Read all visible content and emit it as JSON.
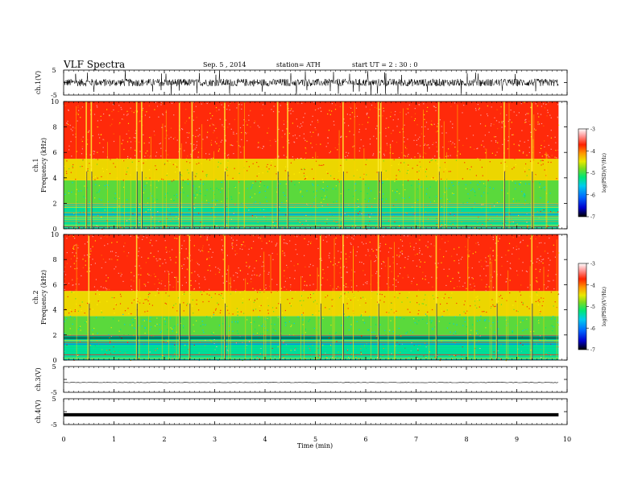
{
  "header": {
    "title": "VLF  Spectra",
    "date": "Sep. 5  , 2014",
    "station": "station= ATH",
    "start": "start  UT  =   2  : 30 : 0"
  },
  "colors": {
    "scale": [
      "#000000",
      "#0000cc",
      "#0066ff",
      "#00ccee",
      "#00e676",
      "#7ddc1f",
      "#e8e800",
      "#ff9900",
      "#ff2200",
      "#ff9999",
      "#ffffff"
    ]
  },
  "chart_data": [
    {
      "type": "line",
      "panel": "ch1-waveform",
      "ylabel": "ch.1(V)",
      "ylim": [
        -5,
        5
      ],
      "yticks": [
        "5",
        "-5"
      ],
      "description_values": {
        "mean": 0,
        "amplitude_approx": 1.5
      }
    },
    {
      "type": "heatmap",
      "panel": "ch1-spectrogram",
      "ylabel": "ch.1\nFrequency (kHz)",
      "ylabel_top": "ch.1",
      "ylabel_main": "Frequency  (kHz)",
      "ylim": [
        0,
        10
      ],
      "yticks": [
        "10",
        "8",
        "6",
        "4",
        "2",
        "0"
      ],
      "xlim": [
        0,
        9.83
      ],
      "zlabel": "log(PSD)(V²/Hz)",
      "zlim": [
        -7,
        -3
      ],
      "zticks": [
        "-3",
        "-4",
        "-5",
        "-6",
        "-7"
      ],
      "bands_kHz": [
        {
          "from": 0,
          "to": 2,
          "log_psd": -5.5
        },
        {
          "from": 2,
          "to": 3.8,
          "log_psd": -5.0
        },
        {
          "from": 3.8,
          "to": 5.5,
          "log_psd": -4.3
        },
        {
          "from": 5.5,
          "to": 10,
          "log_psd": -3.8
        }
      ],
      "sferic_times_min": [
        0.45,
        0.55,
        1.45,
        1.55,
        2.3,
        2.55,
        3.2,
        4.25,
        4.45,
        5.55,
        6.25,
        6.3,
        7.45,
        8.75,
        9.3
      ]
    },
    {
      "type": "heatmap",
      "panel": "ch2-spectrogram",
      "ylabel_top": "ch.2",
      "ylabel_main": "Frequency  (kHz)",
      "ylim": [
        0,
        10
      ],
      "yticks": [
        "10",
        "8",
        "6",
        "4",
        "2",
        "0"
      ],
      "xlim": [
        0,
        9.83
      ],
      "zlabel": "log(PSD)(V²/Hz)",
      "zlim": [
        -7,
        -3
      ],
      "zticks": [
        "-3",
        "-4",
        "-5",
        "-6",
        "-7"
      ],
      "bands_kHz": [
        {
          "from": 0,
          "to": 2,
          "log_psd": -5.5
        },
        {
          "from": 2,
          "to": 3.5,
          "log_psd": -5.0
        },
        {
          "from": 3.5,
          "to": 5.5,
          "log_psd": -4.3
        },
        {
          "from": 5.5,
          "to": 10,
          "log_psd": -3.8
        }
      ],
      "sferic_times_min": [
        0.5,
        1.45,
        2.3,
        2.5,
        3.2,
        4.3,
        5.1,
        5.55,
        6.25,
        7.4,
        8.6,
        9.3
      ]
    },
    {
      "type": "line",
      "panel": "ch3-waveform",
      "ylabel": "ch.3(V)",
      "ylim": [
        -5,
        5
      ],
      "yticks": [
        "5",
        "-5"
      ],
      "description_values": {
        "mean": -1.2,
        "amplitude_approx": 0.1
      }
    },
    {
      "type": "line",
      "panel": "ch4-waveform",
      "ylabel": "ch.4(V)",
      "ylim": [
        -5,
        5
      ],
      "yticks": [
        "5",
        "-5"
      ],
      "description_values": {
        "mean": -1.2,
        "amplitude_approx": 0.2
      }
    }
  ],
  "xaxis": {
    "label": "Time  (min)",
    "xlim": [
      0,
      10
    ],
    "ticks": [
      "0",
      "1",
      "2",
      "3",
      "4",
      "5",
      "6",
      "7",
      "8",
      "9",
      "10"
    ]
  }
}
